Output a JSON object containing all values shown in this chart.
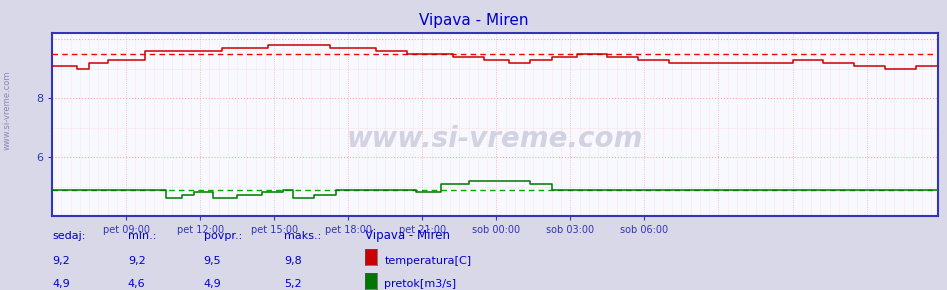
{
  "title": "Vipava - Miren",
  "title_color": "#0000cc",
  "bg_color": "#d8d8e8",
  "plot_bg_color": "#f8f8ff",
  "xlim": [
    0,
    287
  ],
  "ylim": [
    4.0,
    10.2
  ],
  "yticks": [
    6.0,
    8.0
  ],
  "ytick_labels": [
    "6",
    "8"
  ],
  "x_tick_positions": [
    24,
    48,
    72,
    96,
    120,
    144,
    168,
    192
  ],
  "x_tick_labels": [
    "pet 09:00",
    "pet 12:00",
    "pet 15:00",
    "pet 18:00",
    "pet 21:00",
    "sob 00:00",
    "sob 03:00",
    "sob 06:00"
  ],
  "temp_avg": 9.5,
  "flow_avg": 4.9,
  "temp_color": "#cc0000",
  "flow_color": "#007700",
  "avg_line_color_temp": "#ff0000",
  "avg_line_color_flow": "#00aa00",
  "grid_color": "#ffaaaa",
  "grid_minor_color": "#ffcccc",
  "axis_color": "#3333bb",
  "tick_color": "#3333bb",
  "watermark": "www.si-vreme.com",
  "legend_title": "Vipava - Miren",
  "legend_items": [
    "temperatura[C]",
    "pretok[m3/s]"
  ],
  "legend_colors": [
    "#cc0000",
    "#007700"
  ],
  "stats_headers": [
    "sedaj:",
    "min.:",
    "povpr.:",
    "maks.:"
  ],
  "stats_temp": [
    "9,2",
    "9,2",
    "9,5",
    "9,8"
  ],
  "stats_flow": [
    "4,9",
    "4,6",
    "4,9",
    "5,2"
  ]
}
